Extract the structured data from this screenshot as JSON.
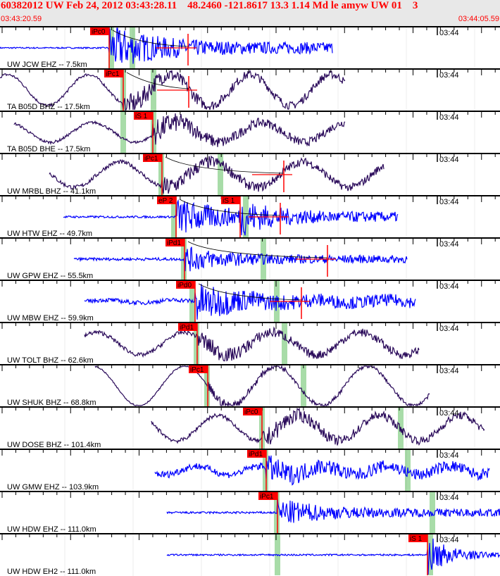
{
  "header": {
    "title": "60382012 UW Feb 24, 2012 03:43:28.11    48.2460 -121.8617 13.3 1.14 Md le amyw UW 01    3",
    "start_time": "03:43:20.59",
    "end_time": "03:44:05.59"
  },
  "time_tick_label": "03:44",
  "colors": {
    "pick": "#ff0000",
    "pick_window": "#a8dca8",
    "trace_blue": "#0000ff",
    "trace_purple": "#2a0a5a"
  },
  "traces": [
    {
      "label": "UW JCW EHZ -- 7.5km",
      "color": "blue",
      "picks": [
        {
          "label": "iPc0"
        }
      ]
    },
    {
      "label": "TA B05D BHZ -- 17.5km",
      "color": "purple",
      "picks": [
        {
          "label": "iPc1"
        }
      ]
    },
    {
      "label": "TA B05D BHE -- 17.5km",
      "color": "purple",
      "picks": [
        {
          "label": "iS 1"
        }
      ]
    },
    {
      "label": "UW MRBL BHZ -- 41.1km",
      "color": "purple",
      "picks": [
        {
          "label": "iPc1"
        }
      ]
    },
    {
      "label": "UW HTW EHZ -- 49.7km",
      "color": "blue",
      "picks": [
        {
          "label": "eP 2"
        },
        {
          "label": "iS 1"
        }
      ]
    },
    {
      "label": "UW GPW EHZ -- 55.5km",
      "color": "blue",
      "picks": [
        {
          "label": "iPd1"
        }
      ]
    },
    {
      "label": "UW MBW EHZ -- 59.9km",
      "color": "blue",
      "picks": [
        {
          "label": "iPd0"
        }
      ]
    },
    {
      "label": "UW TOLT BHZ -- 62.6km",
      "color": "purple",
      "picks": [
        {
          "label": "iPd1"
        }
      ]
    },
    {
      "label": "UW SHUK BHZ -- 68.8km",
      "color": "purple",
      "picks": [
        {
          "label": "iPc1"
        }
      ]
    },
    {
      "label": "UW DOSE BHZ -- 101.4km",
      "color": "purple",
      "picks": [
        {
          "label": "iPc0"
        }
      ]
    },
    {
      "label": "UW GMW EHZ -- 103.9km",
      "color": "blue",
      "picks": [
        {
          "label": "iPd1"
        }
      ]
    },
    {
      "label": "UW HDW EHZ -- 111.0km",
      "color": "blue",
      "picks": [
        {
          "label": "iPc1"
        }
      ]
    },
    {
      "label": "UW HDW EH2 -- 111.0km",
      "color": "blue",
      "picks": [
        {
          "label": "iS 1"
        }
      ]
    }
  ]
}
